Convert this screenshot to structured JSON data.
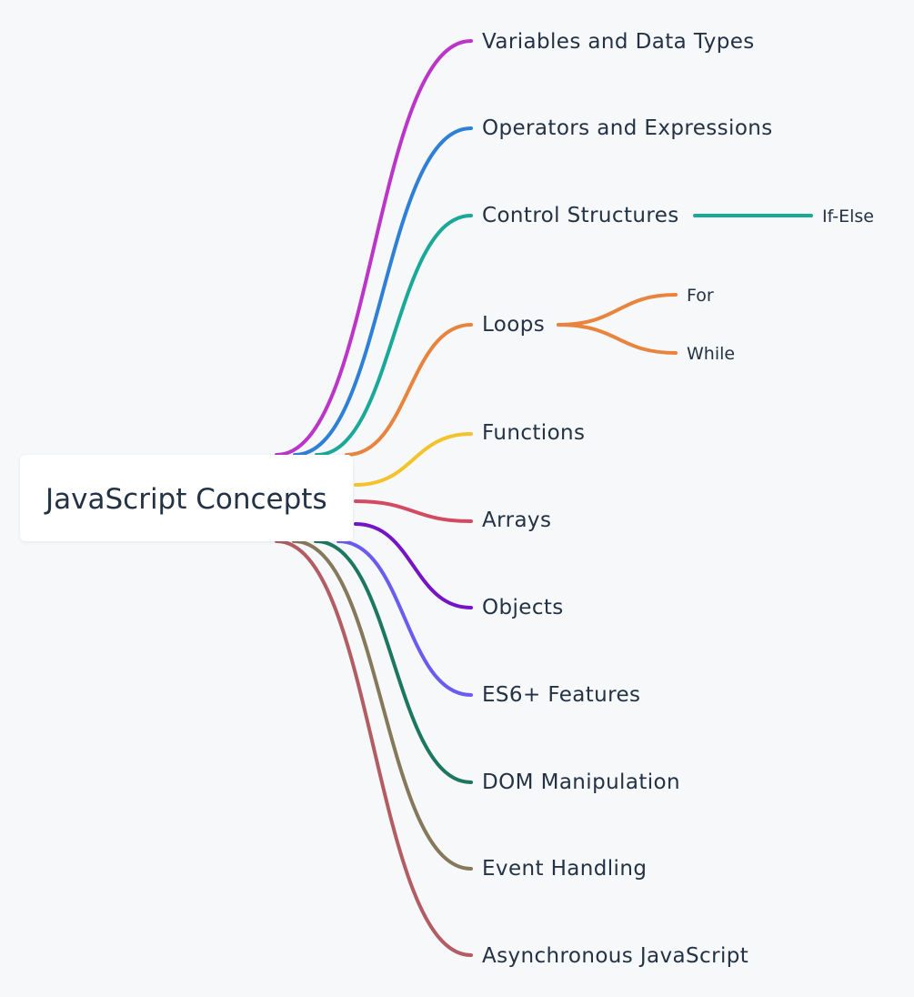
{
  "root": {
    "label": "JavaScript Concepts"
  },
  "branches": [
    {
      "label": "Variables and Data Types",
      "color": "#bb35c8"
    },
    {
      "label": "Operators and Expressions",
      "color": "#2e7fd6"
    },
    {
      "label": "Control Structures",
      "color": "#1aa898",
      "children": [
        {
          "label": "If-Else"
        }
      ]
    },
    {
      "label": "Loops",
      "color": "#e8843e",
      "children": [
        {
          "label": "For"
        },
        {
          "label": "While"
        }
      ]
    },
    {
      "label": "Functions",
      "color": "#f4c22b"
    },
    {
      "label": "Arrays",
      "color": "#d24b62"
    },
    {
      "label": "Objects",
      "color": "#7514c4"
    },
    {
      "label": "ES6+ Features",
      "color": "#6a5cf0"
    },
    {
      "label": "DOM Manipulation",
      "color": "#1c7660"
    },
    {
      "label": "Event Handling",
      "color": "#86785a"
    },
    {
      "label": "Asynchronous JavaScript",
      "color": "#b25c63"
    }
  ]
}
